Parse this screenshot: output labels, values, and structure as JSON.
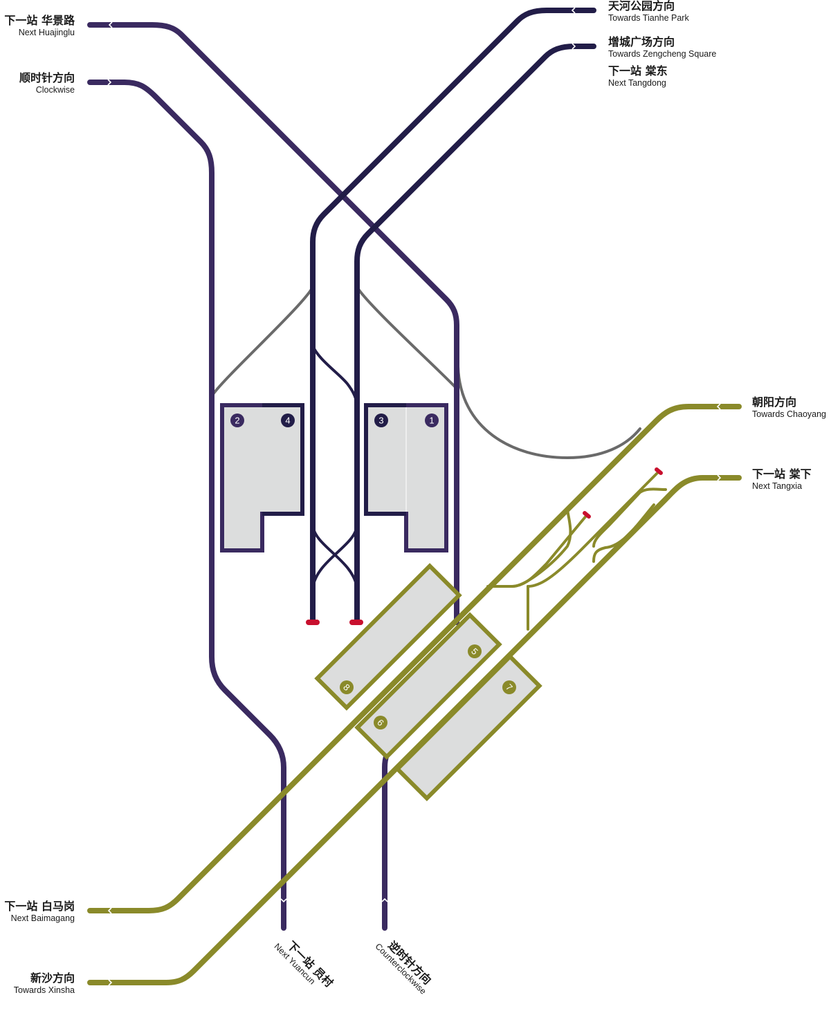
{
  "colors": {
    "line_dark_navy": "#221d48",
    "line_purple": "#3a2a60",
    "line_olive": "#8a8a2a",
    "depot_link_gray": "#6a6a6a",
    "platform_fill": "#dcdddd",
    "buffer_red": "#c8102e"
  },
  "labels": {
    "huajinglu": {
      "zh": "下一站 华景路",
      "en": "Next Huajinglu"
    },
    "clockwise": {
      "zh": "顺时针方向",
      "en": "Clockwise"
    },
    "tianhe_park": {
      "zh": "天河公园方向",
      "en": "Towards Tianhe Park"
    },
    "zengcheng": {
      "zh": "增城广场方向",
      "en": "Towards Zengcheng Square"
    },
    "tangdong": {
      "zh": "下一站 棠东",
      "en": "Next Tangdong"
    },
    "chaoyang": {
      "zh": "朝阳方向",
      "en": "Towards Chaoyang"
    },
    "tangxia": {
      "zh": "下一站 棠下",
      "en": "Next Tangxia"
    },
    "baimagang": {
      "zh": "下一站 白马岗",
      "en": "Next Baimagang"
    },
    "xinsha": {
      "zh": "新沙方向",
      "en": "Towards Xinsha"
    },
    "yuancun": {
      "zh": "下一站 员村",
      "en": "Next Yuancun"
    },
    "counterclockwise": {
      "zh": "逆时针方向",
      "en": "Counterclockwise"
    }
  },
  "platforms": [
    {
      "id": "2",
      "label": "2"
    },
    {
      "id": "4",
      "label": "4"
    },
    {
      "id": "3",
      "label": "3"
    },
    {
      "id": "1",
      "label": "1"
    },
    {
      "id": "5",
      "label": "5"
    },
    {
      "id": "6",
      "label": "6"
    },
    {
      "id": "7",
      "label": "7"
    },
    {
      "id": "8",
      "label": "8"
    }
  ]
}
